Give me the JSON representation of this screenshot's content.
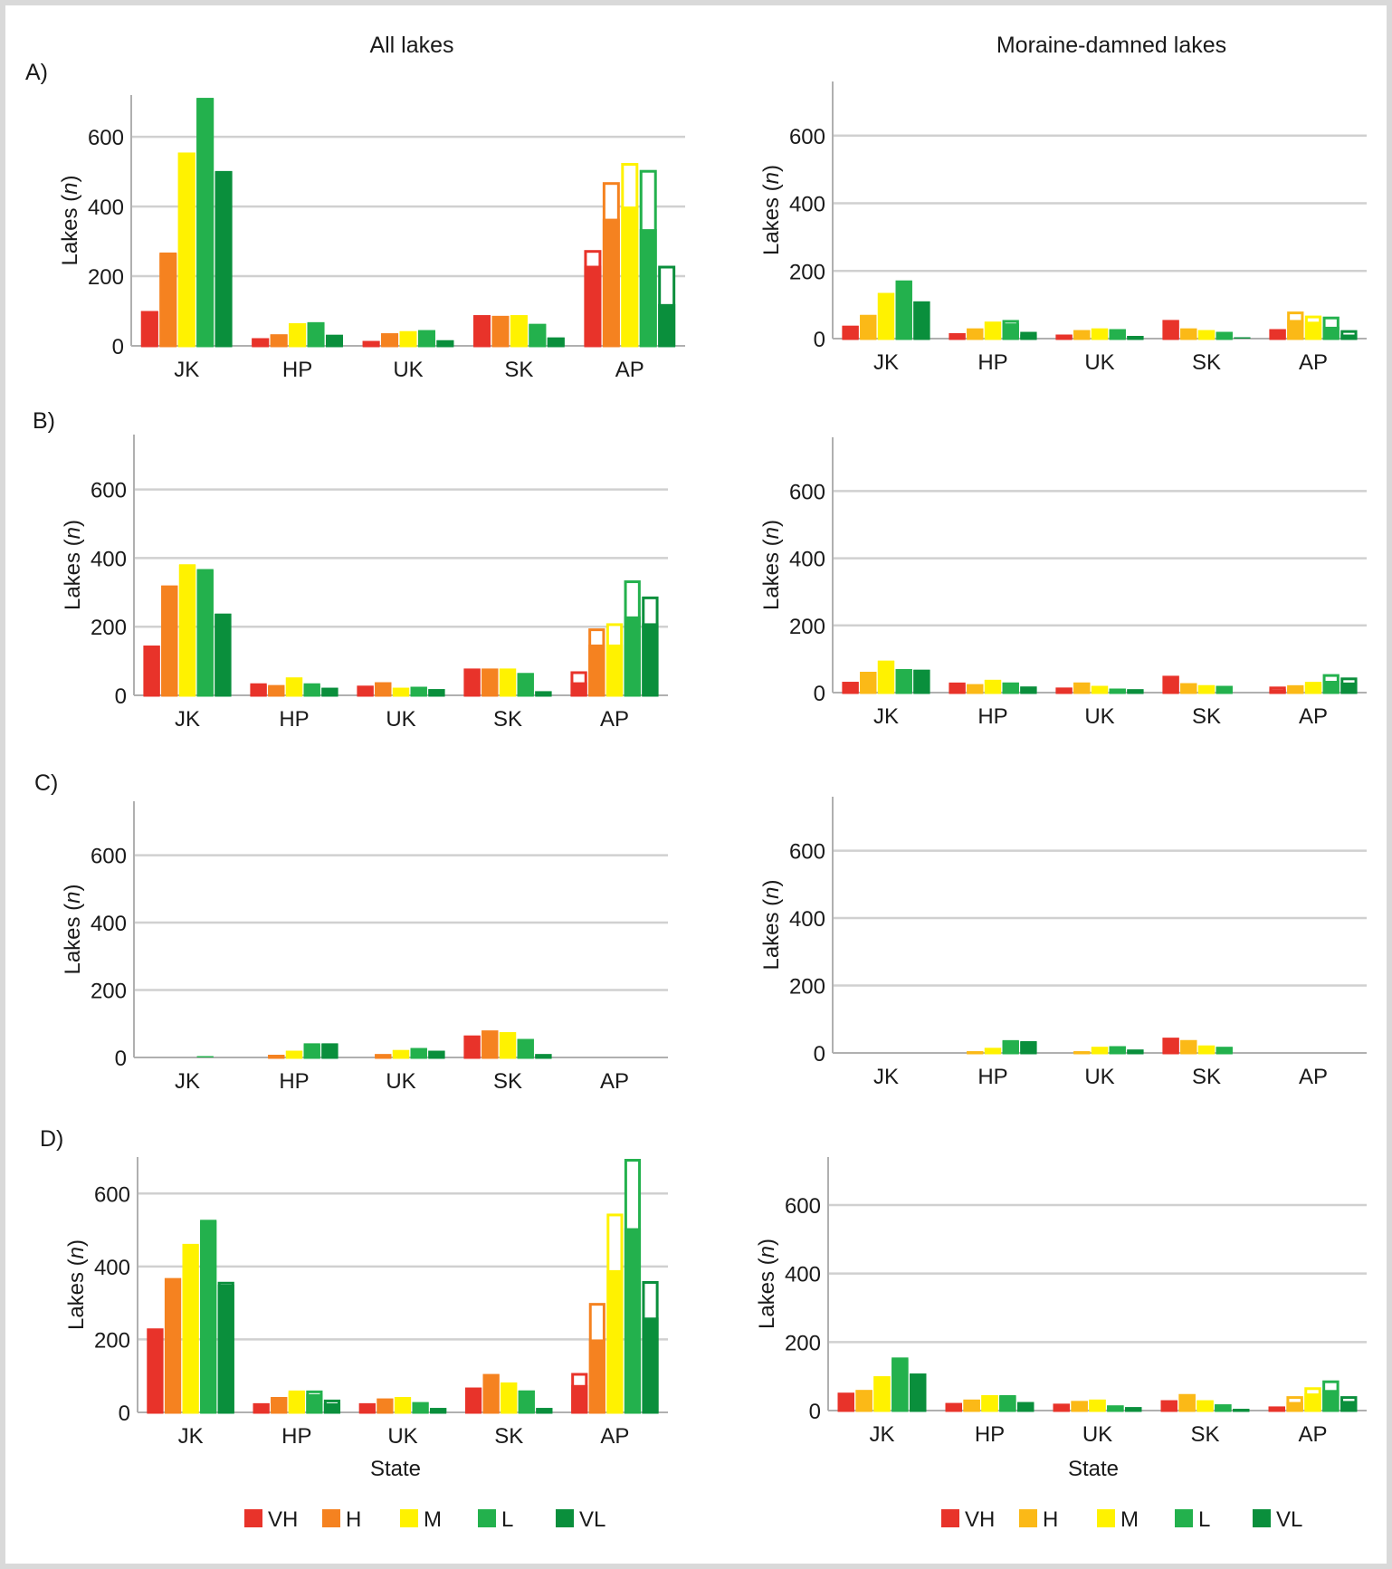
{
  "columns": [
    "All lakes",
    "Moraine-damned lakes"
  ],
  "row_labels": [
    "A)",
    "B)",
    "C)",
    "D)"
  ],
  "ylabel_prefix": "Lakes (",
  "ylabel_var": "n",
  "ylabel_suffix": ")",
  "xlabel": "State",
  "legend": {
    "left": [
      {
        "label": "VH",
        "color": "#e8332a"
      },
      {
        "label": "H",
        "color": "#f58220"
      },
      {
        "label": "M",
        "color": "#fff200"
      },
      {
        "label": "L",
        "color": "#23b14d"
      },
      {
        "label": "VL",
        "color": "#0a8f3c"
      }
    ],
    "right": [
      {
        "label": "VH",
        "color": "#e8332a"
      },
      {
        "label": "H",
        "color": "#fbb917"
      },
      {
        "label": "M",
        "color": "#fff200"
      },
      {
        "label": "L",
        "color": "#23b14d"
      },
      {
        "label": "VL",
        "color": "#0a8f3c"
      }
    ]
  },
  "chart_data": [
    {
      "id": "A-all",
      "type": "bar",
      "categories": [
        "JK",
        "HP",
        "UK",
        "SK",
        "AP"
      ],
      "yticks": [
        0,
        200,
        400,
        600
      ],
      "ylim": [
        0,
        720
      ],
      "series": [
        {
          "name": "VH",
          "values": [
            100,
            22,
            14,
            88,
            230
          ],
          "totals": [
            100,
            22,
            14,
            88,
            275
          ]
        },
        {
          "name": "H",
          "values": [
            265,
            33,
            36,
            86,
            365
          ],
          "totals": [
            268,
            33,
            36,
            86,
            470
          ]
        },
        {
          "name": "M",
          "values": [
            555,
            65,
            42,
            88,
            400
          ],
          "totals": [
            555,
            65,
            42,
            88,
            525
          ]
        },
        {
          "name": "L",
          "values": [
            710,
            65,
            45,
            63,
            335
          ],
          "totals": [
            712,
            68,
            45,
            63,
            505
          ]
        },
        {
          "name": "VL",
          "values": [
            500,
            25,
            16,
            24,
            120
          ],
          "totals": [
            502,
            32,
            16,
            24,
            230
          ]
        }
      ]
    },
    {
      "id": "A-mor",
      "type": "bar",
      "categories": [
        "JK",
        "HP",
        "UK",
        "SK",
        "AP"
      ],
      "yticks": [
        0,
        200,
        400,
        600
      ],
      "ylim": [
        0,
        760
      ],
      "series": [
        {
          "name": "VH",
          "values": [
            38,
            16,
            12,
            55,
            28
          ],
          "totals": [
            38,
            16,
            12,
            55,
            28
          ]
        },
        {
          "name": "H",
          "values": [
            70,
            30,
            25,
            30,
            55
          ],
          "totals": [
            70,
            30,
            25,
            30,
            80
          ]
        },
        {
          "name": "M",
          "values": [
            135,
            50,
            30,
            25,
            50
          ],
          "totals": [
            135,
            50,
            30,
            25,
            68
          ]
        },
        {
          "name": "L",
          "values": [
            170,
            45,
            28,
            20,
            35
          ],
          "totals": [
            172,
            55,
            28,
            20,
            65
          ]
        },
        {
          "name": "VL",
          "values": [
            110,
            12,
            8,
            4,
            12
          ],
          "totals": [
            110,
            20,
            8,
            4,
            25
          ]
        }
      ]
    },
    {
      "id": "B-all",
      "type": "bar",
      "categories": [
        "JK",
        "HP",
        "UK",
        "SK",
        "AP"
      ],
      "yticks": [
        0,
        200,
        400,
        600
      ],
      "ylim": [
        0,
        760
      ],
      "series": [
        {
          "name": "VH",
          "values": [
            145,
            30,
            28,
            78,
            38
          ],
          "totals": [
            145,
            35,
            28,
            78,
            70
          ]
        },
        {
          "name": "H",
          "values": [
            320,
            25,
            38,
            78,
            148
          ],
          "totals": [
            320,
            30,
            38,
            78,
            195
          ]
        },
        {
          "name": "M",
          "values": [
            380,
            52,
            22,
            78,
            148
          ],
          "totals": [
            382,
            52,
            22,
            78,
            210
          ]
        },
        {
          "name": "L",
          "values": [
            365,
            28,
            25,
            65,
            230
          ],
          "totals": [
            368,
            35,
            25,
            65,
            335
          ]
        },
        {
          "name": "VL",
          "values": [
            238,
            22,
            18,
            12,
            210
          ],
          "totals": [
            238,
            22,
            18,
            12,
            288
          ]
        }
      ]
    },
    {
      "id": "B-mor",
      "type": "bar",
      "categories": [
        "JK",
        "HP",
        "UK",
        "SK",
        "AP"
      ],
      "yticks": [
        0,
        200,
        400,
        600
      ],
      "ylim": [
        0,
        760
      ],
      "series": [
        {
          "name": "VH",
          "values": [
            32,
            25,
            15,
            50,
            10
          ],
          "totals": [
            32,
            30,
            15,
            50,
            18
          ]
        },
        {
          "name": "H",
          "values": [
            62,
            25,
            30,
            28,
            15
          ],
          "totals": [
            62,
            25,
            30,
            28,
            22
          ]
        },
        {
          "name": "M",
          "values": [
            95,
            38,
            20,
            22,
            25
          ],
          "totals": [
            95,
            38,
            20,
            22,
            32
          ]
        },
        {
          "name": "L",
          "values": [
            70,
            30,
            12,
            20,
            35
          ],
          "totals": [
            70,
            30,
            12,
            20,
            55
          ]
        },
        {
          "name": "VL",
          "values": [
            68,
            18,
            10,
            0,
            30
          ],
          "totals": [
            68,
            18,
            10,
            0,
            45
          ]
        }
      ]
    },
    {
      "id": "C-all",
      "type": "bar",
      "categories": [
        "JK",
        "HP",
        "UK",
        "SK",
        "AP"
      ],
      "yticks": [
        0,
        200,
        400,
        600
      ],
      "ylim": [
        0,
        760
      ],
      "series": [
        {
          "name": "VH",
          "values": [
            0,
            0,
            0,
            65,
            0
          ],
          "totals": [
            0,
            0,
            0,
            65,
            0
          ]
        },
        {
          "name": "H",
          "values": [
            0,
            8,
            10,
            80,
            0
          ],
          "totals": [
            0,
            8,
            10,
            80,
            0
          ]
        },
        {
          "name": "M",
          "values": [
            0,
            20,
            22,
            75,
            0
          ],
          "totals": [
            0,
            20,
            22,
            75,
            0
          ]
        },
        {
          "name": "L",
          "values": [
            4,
            38,
            28,
            55,
            0
          ],
          "totals": [
            4,
            42,
            28,
            55,
            0
          ]
        },
        {
          "name": "VL",
          "values": [
            0,
            40,
            20,
            10,
            0
          ],
          "totals": [
            0,
            42,
            20,
            10,
            0
          ]
        }
      ]
    },
    {
      "id": "C-mor",
      "type": "bar",
      "categories": [
        "JK",
        "HP",
        "UK",
        "SK",
        "AP"
      ],
      "yticks": [
        0,
        200,
        400,
        600
      ],
      "ylim": [
        0,
        760
      ],
      "series": [
        {
          "name": "VH",
          "values": [
            0,
            0,
            0,
            45,
            0
          ],
          "totals": [
            0,
            0,
            0,
            45,
            0
          ]
        },
        {
          "name": "H",
          "values": [
            0,
            5,
            5,
            38,
            0
          ],
          "totals": [
            0,
            5,
            5,
            38,
            0
          ]
        },
        {
          "name": "M",
          "values": [
            0,
            15,
            18,
            22,
            0
          ],
          "totals": [
            0,
            15,
            18,
            22,
            0
          ]
        },
        {
          "name": "L",
          "values": [
            0,
            35,
            20,
            18,
            0
          ],
          "totals": [
            0,
            38,
            20,
            18,
            0
          ]
        },
        {
          "name": "VL",
          "values": [
            0,
            32,
            10,
            0,
            0
          ],
          "totals": [
            0,
            35,
            10,
            0,
            0
          ]
        }
      ]
    },
    {
      "id": "D-all",
      "type": "bar",
      "categories": [
        "JK",
        "HP",
        "UK",
        "SK",
        "AP"
      ],
      "yticks": [
        0,
        200,
        400,
        600
      ],
      "ylim": [
        0,
        700
      ],
      "series": [
        {
          "name": "VH",
          "values": [
            230,
            25,
            25,
            68,
            75
          ],
          "totals": [
            230,
            25,
            25,
            68,
            108
          ]
        },
        {
          "name": "H",
          "values": [
            368,
            42,
            38,
            105,
            200
          ],
          "totals": [
            368,
            42,
            38,
            105,
            300
          ]
        },
        {
          "name": "M",
          "values": [
            460,
            55,
            42,
            82,
            390
          ],
          "totals": [
            462,
            60,
            42,
            82,
            545
          ]
        },
        {
          "name": "L",
          "values": [
            525,
            50,
            28,
            60,
            505
          ],
          "totals": [
            528,
            60,
            28,
            60,
            695
          ]
        },
        {
          "name": "VL",
          "values": [
            350,
            25,
            12,
            12,
            260
          ],
          "totals": [
            358,
            35,
            12,
            12,
            360
          ]
        }
      ]
    },
    {
      "id": "D-mor",
      "type": "bar",
      "categories": [
        "JK",
        "HP",
        "UK",
        "SK",
        "AP"
      ],
      "yticks": [
        0,
        200,
        400,
        600
      ],
      "ylim": [
        0,
        740
      ],
      "series": [
        {
          "name": "VH",
          "values": [
            52,
            22,
            20,
            30,
            12
          ],
          "totals": [
            52,
            22,
            20,
            30,
            12
          ]
        },
        {
          "name": "H",
          "values": [
            60,
            32,
            28,
            48,
            25
          ],
          "totals": [
            60,
            32,
            28,
            48,
            42
          ]
        },
        {
          "name": "M",
          "values": [
            100,
            45,
            32,
            30,
            50
          ],
          "totals": [
            100,
            45,
            32,
            30,
            68
          ]
        },
        {
          "name": "L",
          "values": [
            150,
            42,
            15,
            18,
            60
          ],
          "totals": [
            155,
            45,
            15,
            18,
            88
          ]
        },
        {
          "name": "VL",
          "values": [
            108,
            22,
            10,
            5,
            28
          ],
          "totals": [
            108,
            25,
            10,
            5,
            42
          ]
        }
      ]
    }
  ]
}
